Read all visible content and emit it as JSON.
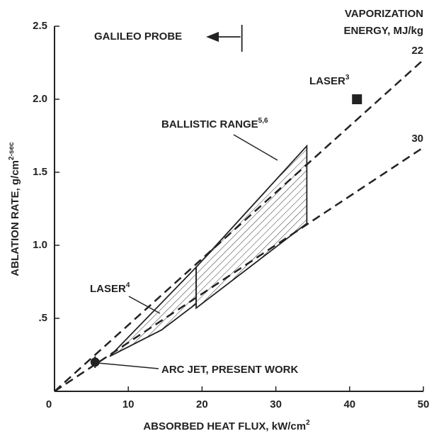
{
  "chart_data": {
    "type": "line",
    "x_label": {
      "text": "ABSORBED HEAT FLUX, kW/cm",
      "sup": "2"
    },
    "y_label": {
      "text": "ABLATION RATE, g/cm",
      "sup": "2",
      "tail": "-sec"
    },
    "legend_title": [
      "VAPORIZATION",
      "ENERGY, MJ/kg"
    ],
    "xlim": [
      0,
      50
    ],
    "ylim": [
      0,
      2.5
    ],
    "xticks": [
      0,
      10,
      20,
      30,
      40,
      50
    ],
    "yticks": [
      {
        "value": 0.5,
        "label": ".5"
      },
      {
        "value": 1,
        "label": "1.0"
      },
      {
        "value": 1.5,
        "label": "1.5"
      },
      {
        "value": 2,
        "label": "2.0"
      },
      2.5
    ],
    "series": [
      {
        "name": "22",
        "color": "#222222",
        "dash": true,
        "x": [
          0,
          50
        ],
        "values": [
          0,
          2.27
        ]
      },
      {
        "name": "30",
        "color": "#222222",
        "dash": true,
        "x": [
          0,
          50
        ],
        "values": [
          0,
          1.67
        ]
      }
    ],
    "regions": [
      {
        "name": "LASER",
        "sup": "4",
        "x": [
          7.5,
          19.2,
          19.2,
          14.5
        ],
        "values": [
          0.24,
          0.85,
          0.6,
          0.42
        ]
      },
      {
        "name": "BALLISTIC RANGE",
        "sup": "5,6",
        "x": [
          19.2,
          19.2,
          34.2,
          34.2
        ],
        "values": [
          0.57,
          0.85,
          1.68,
          1.15
        ]
      }
    ],
    "points": [
      {
        "name": "LASER",
        "sup": "3",
        "marker": "square",
        "x": 41,
        "y": 2.0
      },
      {
        "name": "ARC JET, PRESENT WORK",
        "marker": "circle",
        "x": 5.5,
        "y": 0.2,
        "error": 0.04
      }
    ],
    "galileo_probe": {
      "label": "GALILEO PROBE",
      "x": 25.4
    }
  }
}
